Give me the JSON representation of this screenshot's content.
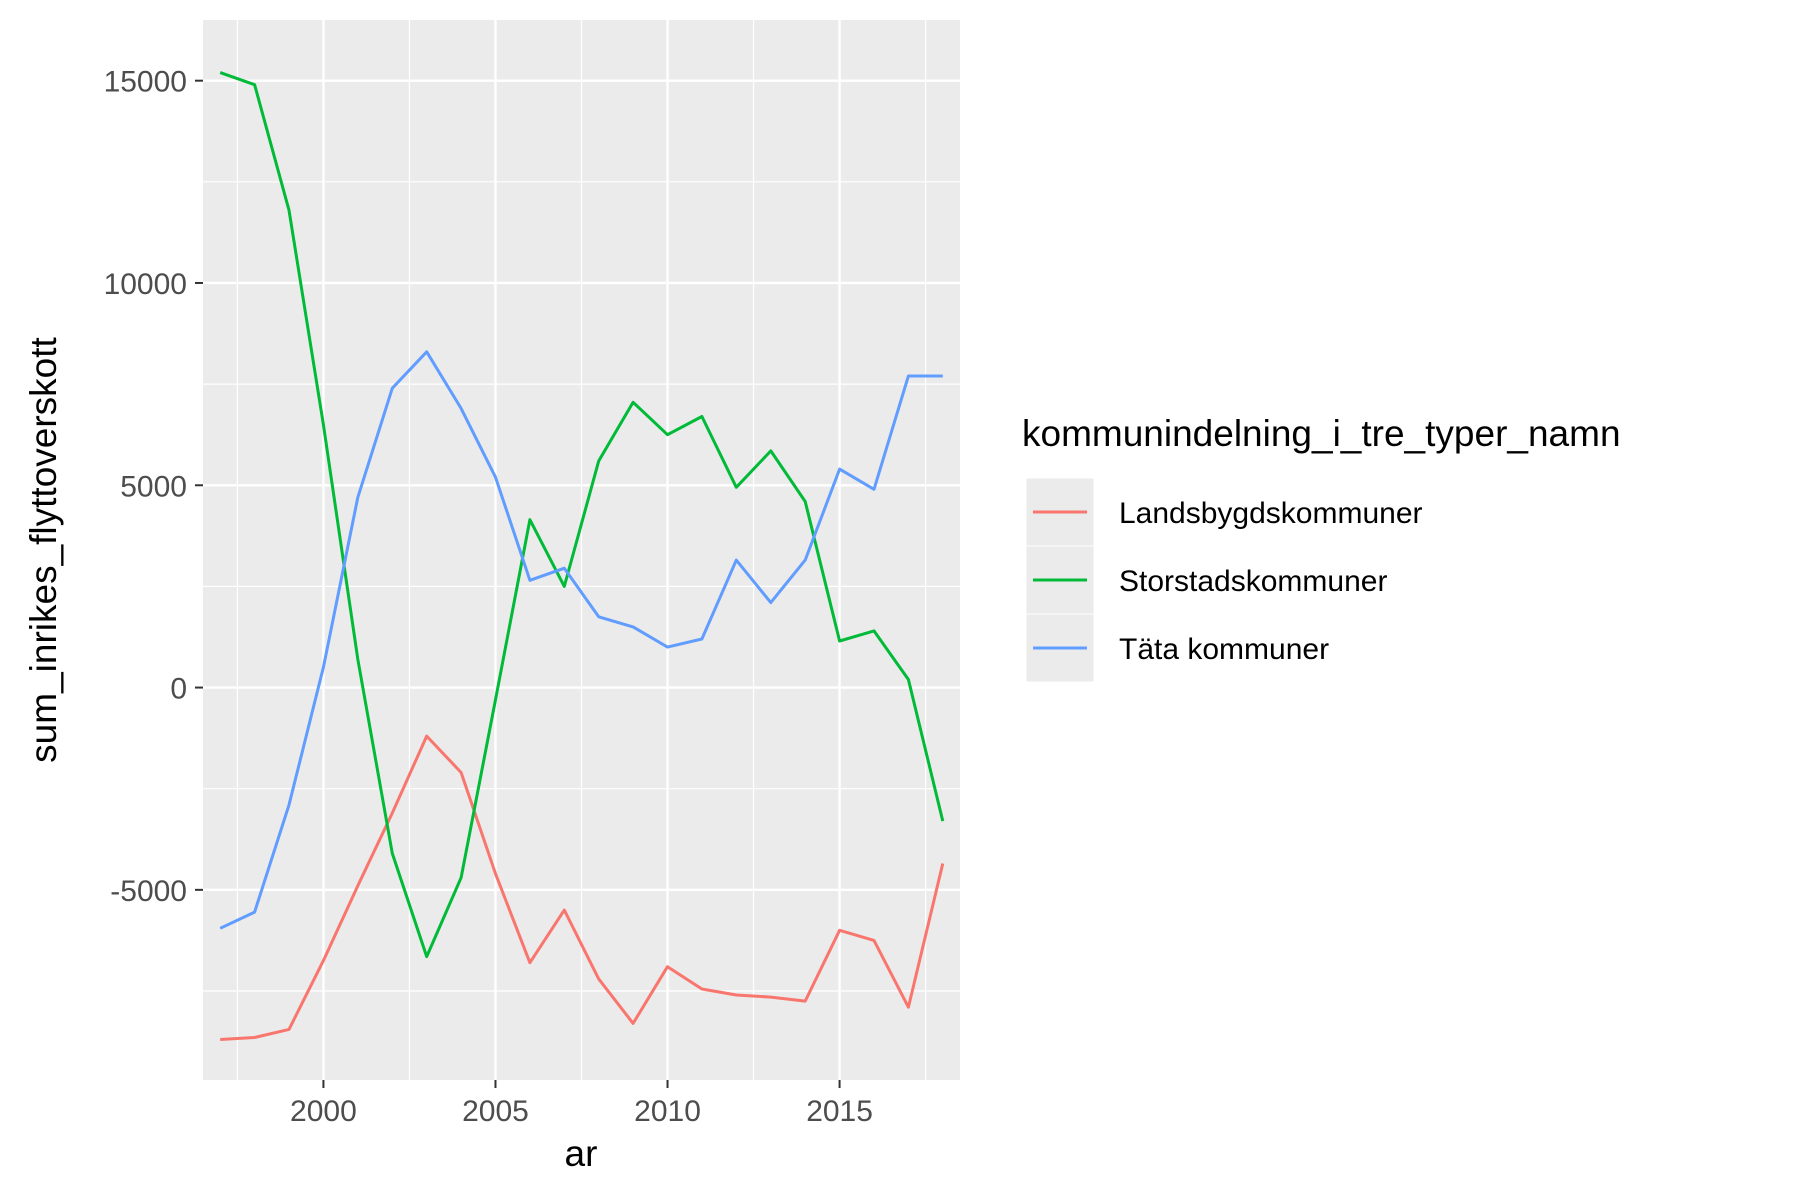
{
  "chart_data": {
    "type": "line",
    "title": "",
    "xlabel": "ar",
    "ylabel": "sum_inrikes_flyttoverskott",
    "xlim": [
      1996.5,
      2018.5
    ],
    "ylim": [
      -9700,
      16500
    ],
    "xticks": [
      2000,
      2005,
      2010,
      2015
    ],
    "yticks": [
      15000,
      10000,
      5000,
      0,
      -5000
    ],
    "x_tick_labels": [
      "2000",
      "2005",
      "2010",
      "2015"
    ],
    "y_tick_labels": [
      "15000",
      "10000",
      "5000",
      "0",
      "-5000"
    ],
    "grid": true,
    "legend": {
      "title": "kommunindelning_i_tre_typer_namn",
      "position": "right"
    },
    "x": [
      1997,
      1998,
      1999,
      2000,
      2001,
      2002,
      2003,
      2004,
      2005,
      2006,
      2007,
      2008,
      2009,
      2010,
      2011,
      2012,
      2013,
      2014,
      2015,
      2016,
      2017,
      2018
    ],
    "series": [
      {
        "name": "Landsbygdskommuner",
        "color": "#F8766D",
        "values": [
          -8700,
          -8650,
          -8450,
          -6750,
          -4900,
          -3100,
          -1200,
          -2100,
          -4600,
          -6800,
          -5500,
          -7200,
          -8300,
          -6900,
          -7450,
          -7600,
          -7650,
          -7750,
          -6000,
          -6250,
          -7900,
          -4350
        ]
      },
      {
        "name": "Storstadskommuner",
        "color": "#00BA38",
        "values": [
          15200,
          14900,
          11800,
          6500,
          700,
          -4100,
          -6650,
          -4700,
          -300,
          4150,
          2500,
          5600,
          7050,
          6250,
          6700,
          4950,
          5850,
          4600,
          1150,
          1400,
          200,
          -3300
        ]
      },
      {
        "name": "Täta kommuner",
        "color": "#619CFF",
        "values": [
          -5950,
          -5550,
          -2900,
          500,
          4700,
          7400,
          8300,
          6900,
          5200,
          2650,
          2950,
          1750,
          1500,
          1000,
          1200,
          3150,
          2100,
          3150,
          5400,
          4900,
          7700,
          7700
        ]
      }
    ]
  }
}
